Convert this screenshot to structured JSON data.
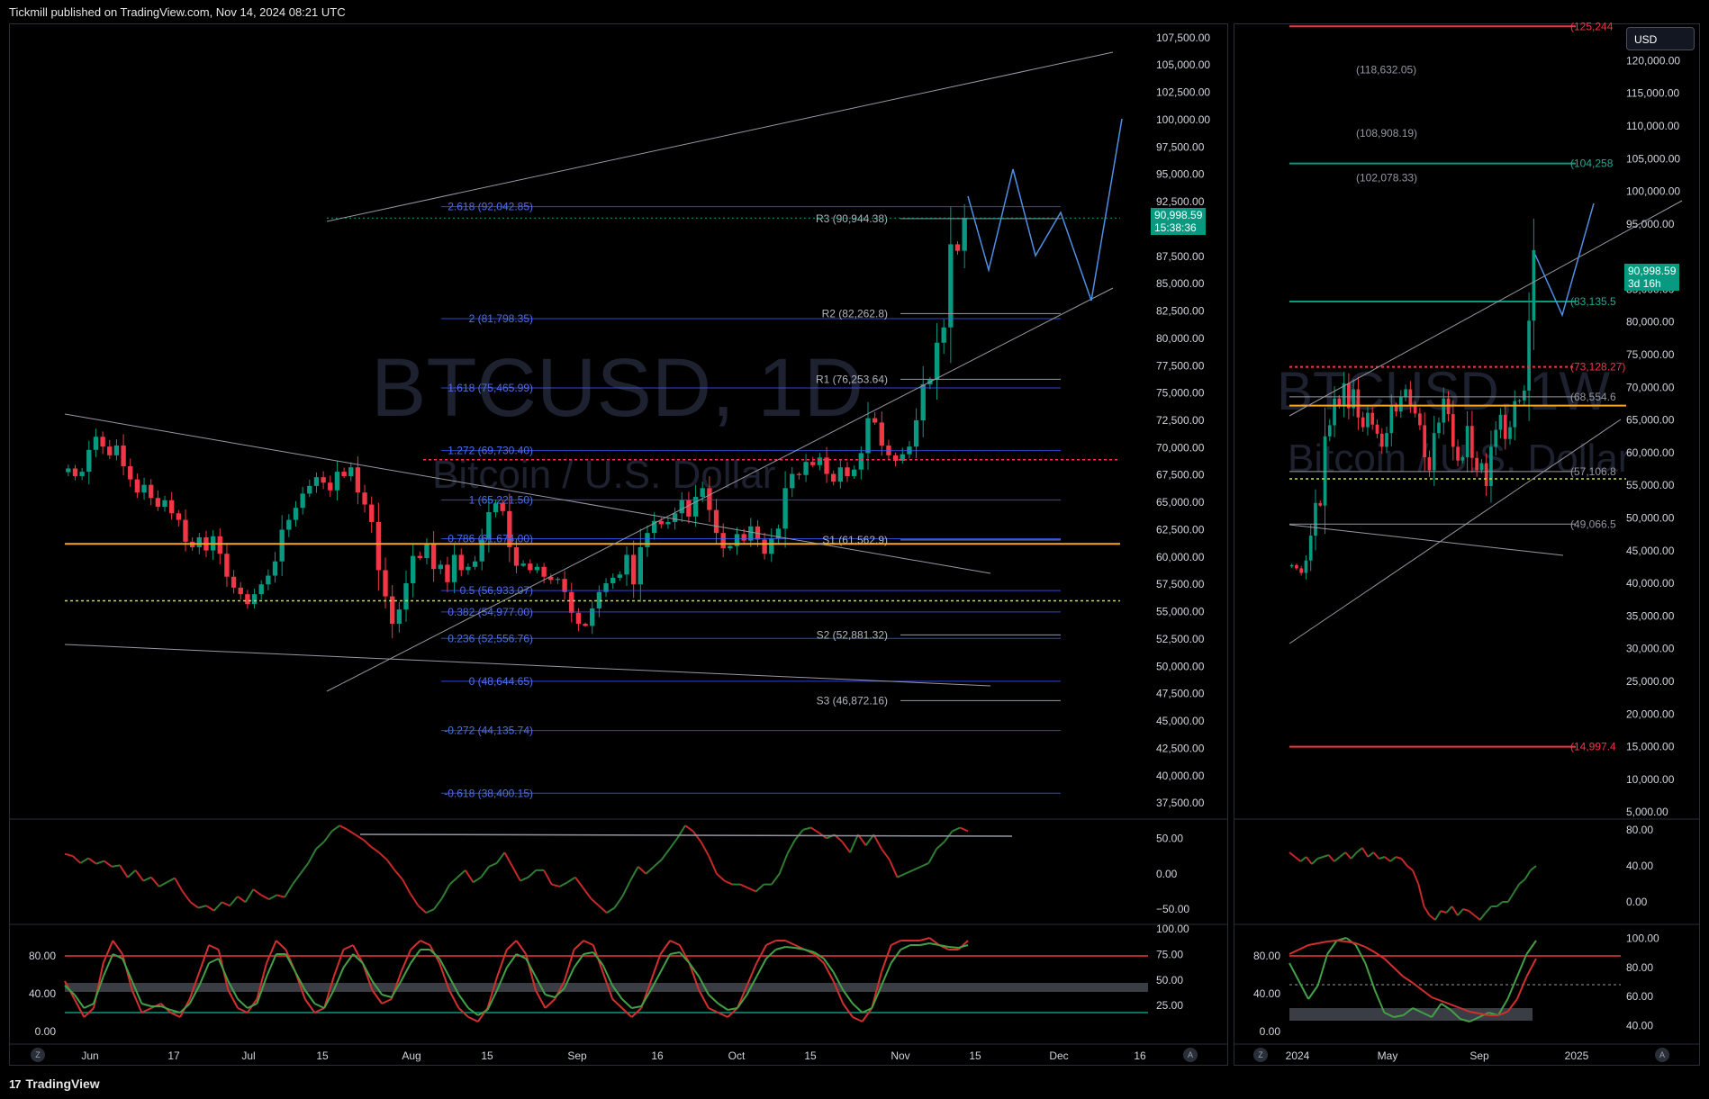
{
  "header": {
    "publisher": "Tickmill published on TradingView.com, Nov 14, 2024 08:21 UTC"
  },
  "footer": {
    "brand": "TradingView",
    "logo_glyph": "17"
  },
  "currency_button": "USD",
  "colors": {
    "up": "#089981",
    "down": "#f23645",
    "bg": "#000000",
    "fib": "#3d5afe",
    "pivot": "#9598a1"
  },
  "watermark_left": {
    "symbol": "BTCUSD, 1D",
    "name": "Bitcoin / U.S. Dollar"
  },
  "watermark_right": {
    "symbol": "BTCUSD, 1W",
    "name": "Bitcoin / U.S. Dollar"
  },
  "chart_data": [
    {
      "type": "candlestick",
      "panel": "daily",
      "y_axis_labels": [
        "107,500.00",
        "105,000.00",
        "102,500.00",
        "100,000.00",
        "97,500.00",
        "95,000.00",
        "92,500.00",
        "87,500.00",
        "85,000.00",
        "82,500.00",
        "80,000.00",
        "77,500.00",
        "75,000.00",
        "72,500.00",
        "70,000.00",
        "67,500.00",
        "65,000.00",
        "62,500.00",
        "60,000.00",
        "57,500.00",
        "55,000.00",
        "52,500.00",
        "50,000.00",
        "47,500.00",
        "45,000.00",
        "42,500.00",
        "40,000.00",
        "37,500.00"
      ],
      "ylim": [
        36200,
        108800
      ],
      "x_axis_labels": [
        "Jun",
        "17",
        "Jul",
        "15",
        "Aug",
        "15",
        "Sep",
        "16",
        "Oct",
        "15",
        "Nov",
        "15",
        "Dec",
        "16"
      ],
      "last_price": {
        "value": "90,998.59",
        "countdown": "15:38:36"
      },
      "fib_levels": [
        {
          "label": "2.618 (92,042.85)",
          "value": 92042.85
        },
        {
          "label": "2 (81,798.35)",
          "value": 81798.35
        },
        {
          "label": "1.618 (75,465.99)",
          "value": 75465.99
        },
        {
          "label": "1.272 (69,730.40)",
          "value": 69730.4
        },
        {
          "label": "1 (65,221.50)",
          "value": 65221.5
        },
        {
          "label": "0.786 (61,674.00)",
          "value": 61674.0
        },
        {
          "label": "0.5 (56,933.07)",
          "value": 56933.07
        },
        {
          "label": "0.382 (54,977.00)",
          "value": 54977.0
        },
        {
          "label": "0.236 (52,556.76)",
          "value": 52556.76
        },
        {
          "label": "0 (48,644.65)",
          "value": 48644.65
        },
        {
          "label": "-0.272 (44,135.74)",
          "value": 44135.74
        },
        {
          "label": "-0.618 (38,400.15)",
          "value": 38400.15
        }
      ],
      "pivots": [
        {
          "label": "R3 (90,944.38)",
          "value": 90944.38
        },
        {
          "label": "R2 (82,262.8)",
          "value": 82262.8
        },
        {
          "label": "R1 (76,253.64)",
          "value": 76253.64
        },
        {
          "label": "S1 (61,562.9)",
          "value": 61562.9
        },
        {
          "label": "S2 (52,881.32)",
          "value": 52881.32
        },
        {
          "label": "S3 (46,872.16)",
          "value": 46872.16
        }
      ],
      "closes": [
        68100,
        67400,
        67800,
        69800,
        71000,
        70100,
        69300,
        70200,
        68300,
        67100,
        65900,
        66600,
        65400,
        64600,
        65200,
        64000,
        63400,
        61400,
        60900,
        61800,
        60600,
        61900,
        60300,
        58200,
        57200,
        56600,
        55700,
        56600,
        57500,
        58300,
        59600,
        62500,
        63400,
        64500,
        65800,
        66500,
        67300,
        66800,
        66100,
        67800,
        67400,
        68200,
        65900,
        64800,
        63200,
        58800,
        56400,
        53900,
        55200,
        57600,
        60100,
        59900,
        61200,
        58900,
        59300,
        57700,
        60200,
        58800,
        59100,
        59600,
        61600,
        64100,
        64900,
        64200,
        60900,
        59200,
        59400,
        58800,
        59100,
        58200,
        57900,
        58000,
        56800,
        54900,
        53900,
        53700,
        55300,
        56800,
        57600,
        58100,
        58400,
        60200,
        57500,
        60900,
        62200,
        63300,
        63000,
        63200,
        64000,
        65200,
        63700,
        65500,
        66300,
        64300,
        62200,
        60800,
        61000,
        62100,
        61500,
        62800,
        61600,
        60300,
        61700,
        62600,
        66300,
        67600,
        67500,
        68700,
        68400,
        69100,
        67600,
        66900,
        68200,
        67400,
        68000,
        69500,
        72700,
        72300,
        70200,
        69300,
        68800,
        69400,
        70100,
        72500,
        75800,
        76200,
        79600,
        81000,
        88600,
        88000,
        90999
      ]
    },
    {
      "type": "candlestick",
      "panel": "weekly",
      "y_axis_labels": [
        "120,000.00",
        "115,000.00",
        "110,000.00",
        "105,000.00",
        "100,000.00",
        "95,000.00",
        "85,000.00",
        "80,000.00",
        "75,000.00",
        "70,000.00",
        "65,000.00",
        "60,000.00",
        "55,000.00",
        "50,000.00",
        "45,000.00",
        "40,000.00",
        "35,000.00",
        "30,000.00",
        "25,000.00",
        "20,000.00",
        "15,000.00",
        "10,000.00",
        "5,000.00"
      ],
      "ylim": [
        4200,
        125700
      ],
      "x_axis_labels": [
        "2024",
        "May",
        "Sep",
        "2025"
      ],
      "last_price": {
        "value": "90,998.59",
        "countdown": "3d 16h"
      },
      "levels": [
        {
          "label": "(125,244",
          "value": 125244
        },
        {
          "label": "(118,632.05)",
          "value": 118632.05
        },
        {
          "label": "(108,908.19)",
          "value": 108908.19
        },
        {
          "label": "(104,258",
          "value": 104258
        },
        {
          "label": "(102,078.33)",
          "value": 102078.33
        },
        {
          "label": "(83,135.5",
          "value": 83135.5
        },
        {
          "label": "(73,128.27)",
          "value": 73128.27
        },
        {
          "label": "(68,554.6",
          "value": 68554.6
        },
        {
          "label": "(57,106.8",
          "value": 57106.8
        },
        {
          "label": "(49,066.5",
          "value": 49066.5
        },
        {
          "label": "(14,997.4",
          "value": 14997.4
        }
      ],
      "closes": [
        42800,
        42300,
        41600,
        43500,
        47300,
        52300,
        51900,
        62500,
        64200,
        68300,
        67200,
        70600,
        66800,
        69700,
        65400,
        63900,
        66100,
        64300,
        62900,
        60900,
        63000,
        67200,
        66300,
        68500,
        69700,
        67300,
        66000,
        64200,
        59300,
        57300,
        63000,
        64600,
        68300,
        65900,
        60900,
        58800,
        59300,
        64100,
        59200,
        57300,
        58400,
        54900,
        60900,
        63500,
        65800,
        62100,
        63900,
        67900,
        68000,
        69500,
        80200,
        90999
      ]
    },
    {
      "type": "line",
      "panel": "daily-oscillator-1",
      "y_axis_labels": [
        "50.00",
        "0.00",
        "−50.00"
      ],
      "ylim": [
        -65,
        72
      ],
      "values": [
        28,
        25,
        15,
        22,
        14,
        18,
        10,
        12,
        -5,
        5,
        -10,
        -5,
        -18,
        -12,
        -6,
        -25,
        -40,
        -48,
        -45,
        -52,
        -40,
        -45,
        -32,
        -40,
        -22,
        -30,
        -36,
        -30,
        -33,
        -15,
        0,
        15,
        35,
        45,
        60,
        68,
        62,
        55,
        48,
        38,
        30,
        20,
        5,
        -8,
        -28,
        -45,
        -55,
        -50,
        -35,
        -15,
        -5,
        5,
        -12,
        -5,
        10,
        15,
        30,
        10,
        -10,
        -5,
        5,
        5,
        -15,
        -18,
        -12,
        -5,
        -20,
        -35,
        -45,
        -55,
        -48,
        -32,
        -10,
        10,
        0,
        10,
        20,
        35,
        50,
        68,
        60,
        45,
        25,
        0,
        -10,
        -15,
        -15,
        -20,
        -25,
        -15,
        -15,
        0,
        28,
        48,
        62,
        65,
        58,
        50,
        55,
        45,
        30,
        55,
        40,
        55,
        35,
        20,
        -5,
        0,
        5,
        10,
        15,
        35,
        45,
        60,
        65,
        60
      ]
    },
    {
      "type": "line",
      "panel": "weekly-oscillator-1",
      "y_axis_labels": [
        "80.00",
        "40.00",
        "0.00"
      ],
      "ylim": [
        -20,
        88
      ],
      "values": [
        55,
        50,
        45,
        50,
        42,
        48,
        50,
        52,
        45,
        50,
        55,
        48,
        55,
        60,
        50,
        55,
        48,
        50,
        45,
        50,
        48,
        40,
        35,
        20,
        -5,
        -15,
        -20,
        -10,
        -12,
        -5,
        -15,
        -8,
        -10,
        -15,
        -20,
        -12,
        -5,
        -5,
        0,
        0,
        10,
        20,
        25,
        35,
        40
      ]
    },
    {
      "type": "line",
      "panel": "daily-stochastic",
      "y_axis_labels": [
        "100.00",
        "75.00",
        "50.00",
        "25.00"
      ],
      "left_labels": [
        "80.00",
        "40.00",
        "0.00"
      ],
      "ylim": [
        0,
        100
      ],
      "series": [
        {
          "values": [
            50,
            30,
            10,
            20,
            70,
            95,
            80,
            40,
            15,
            20,
            25,
            15,
            10,
            30,
            60,
            90,
            85,
            40,
            20,
            15,
            30,
            70,
            95,
            85,
            60,
            30,
            15,
            20,
            55,
            85,
            90,
            70,
            40,
            25,
            30,
            60,
            85,
            95,
            90,
            70,
            40,
            20,
            10,
            5,
            20,
            55,
            85,
            95,
            80,
            40,
            20,
            30,
            50,
            85,
            95,
            90,
            60,
            30,
            20,
            10,
            20,
            50,
            80,
            95,
            90,
            70,
            40,
            20,
            15,
            10,
            20,
            45,
            70,
            90,
            95,
            95,
            90,
            85,
            80,
            70,
            50,
            25,
            10,
            5,
            20,
            60,
            90,
            95,
            95,
            95,
            98,
            90,
            85,
            85,
            95
          ]
        },
        {
          "values": [
            45,
            35,
            20,
            25,
            55,
            80,
            75,
            50,
            25,
            22,
            22,
            18,
            15,
            25,
            45,
            70,
            75,
            50,
            30,
            20,
            25,
            55,
            80,
            80,
            60,
            40,
            25,
            20,
            40,
            65,
            80,
            70,
            50,
            35,
            32,
            50,
            70,
            85,
            85,
            75,
            55,
            35,
            20,
            12,
            18,
            40,
            65,
            80,
            75,
            55,
            35,
            32,
            42,
            65,
            80,
            82,
            68,
            45,
            30,
            20,
            22,
            40,
            60,
            80,
            82,
            70,
            55,
            35,
            25,
            18,
            20,
            35,
            55,
            75,
            85,
            88,
            87,
            85,
            82,
            75,
            60,
            40,
            25,
            15,
            20,
            45,
            70,
            85,
            90,
            90,
            92,
            90,
            88,
            87,
            90
          ]
        }
      ]
    },
    {
      "type": "line",
      "panel": "weekly-stochastic",
      "y_axis_labels": [
        "100.00",
        "80.00",
        "60.00",
        "40.00"
      ],
      "left_labels": [
        "80.00",
        "40.00",
        "0.00"
      ],
      "ylim": [
        0,
        100
      ],
      "series": [
        {
          "values": [
            70,
            50,
            30,
            45,
            80,
            95,
            98,
            90,
            70,
            40,
            15,
            10,
            12,
            20,
            15,
            10,
            25,
            18,
            8,
            5,
            10,
            15,
            12,
            30,
            55,
            80,
            95
          ]
        },
        {
          "values": [
            80,
            85,
            90,
            92,
            94,
            95,
            94,
            92,
            88,
            82,
            75,
            65,
            55,
            48,
            40,
            32,
            28,
            24,
            20,
            16,
            14,
            12,
            12,
            16,
            30,
            55,
            75
          ]
        }
      ]
    }
  ]
}
